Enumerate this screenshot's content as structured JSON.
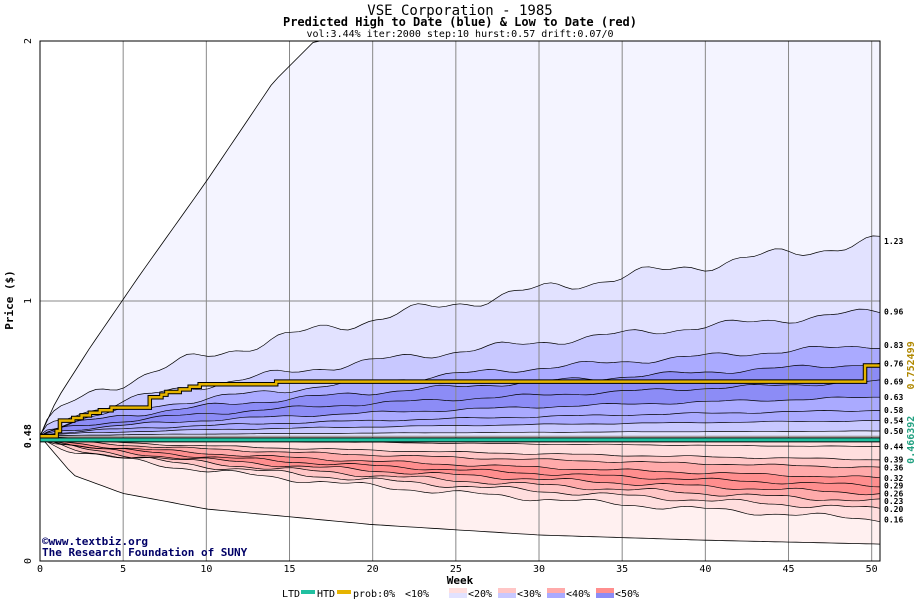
{
  "chart_data": {
    "type": "area",
    "title": "VSE Corporation - 1985",
    "subtitle": "Predicted High to Date (blue) &  Low to Date (red)",
    "params": "vol:3.44% iter:2000 step:10 hurst:0.57 drift:0.07/0",
    "xlabel": "Week",
    "ylabel": "Price ($)",
    "xlim": [
      0,
      50.5
    ],
    "ylim": [
      0,
      2
    ],
    "x_ticks": [
      0,
      5,
      10,
      15,
      20,
      25,
      30,
      35,
      40,
      45,
      50
    ],
    "y_ticks": [
      {
        "value": 0,
        "label": "0",
        "bold": false
      },
      {
        "value": 0.48,
        "label": "0.48",
        "bold": true
      },
      {
        "value": 1,
        "label": "1",
        "bold": false
      },
      {
        "value": 2,
        "label": "2",
        "bold": false
      }
    ],
    "start_price": 0.48,
    "upper_envelope": {
      "x": [
        0,
        1,
        3,
        6,
        10,
        14,
        16.5,
        18,
        25,
        35,
        45,
        50.5
      ],
      "y": [
        0.48,
        0.62,
        0.82,
        1.1,
        1.46,
        1.84,
        2.0,
        2.0,
        2.0,
        2.0,
        2.0,
        2.0
      ]
    },
    "lower_envelope": {
      "x": [
        0,
        2,
        5,
        10,
        20,
        30,
        40,
        50.5
      ],
      "y": [
        0.48,
        0.33,
        0.26,
        0.2,
        0.14,
        0.1,
        0.08,
        0.065
      ]
    },
    "high_quantiles": [
      {
        "end": 1.23,
        "label": "1.23"
      },
      {
        "end": 0.96,
        "label": "0.96"
      },
      {
        "end": 0.83,
        "label": "0.83"
      },
      {
        "end": 0.76,
        "label": "0.76"
      },
      {
        "end": 0.69,
        "label": "0.69"
      },
      {
        "end": 0.63,
        "label": "0.63"
      },
      {
        "end": 0.58,
        "label": "0.58"
      },
      {
        "end": 0.54,
        "label": "0.54"
      },
      {
        "end": 0.5,
        "label": "0.50"
      }
    ],
    "low_quantiles": [
      {
        "end": 0.44,
        "label": "0.44"
      },
      {
        "end": 0.39,
        "label": "0.39"
      },
      {
        "end": 0.36,
        "label": "0.36"
      },
      {
        "end": 0.32,
        "label": "0.32"
      },
      {
        "end": 0.29,
        "label": "0.29"
      },
      {
        "end": 0.26,
        "label": "0.26"
      },
      {
        "end": 0.23,
        "label": "0.23"
      },
      {
        "end": 0.2,
        "label": "0.20"
      },
      {
        "end": 0.16,
        "label": "0.16"
      }
    ],
    "htd_actual": {
      "color": "#e6b400",
      "x": [
        0,
        1,
        1.2,
        2,
        2.5,
        3,
        3.6,
        4.3,
        5,
        6.2,
        6.6,
        7.3,
        7.6,
        8.4,
        9,
        9.6,
        10.5,
        13.8,
        14.2,
        25,
        30,
        35,
        40,
        45,
        49.3,
        49.6,
        50.5
      ],
      "y": [
        0.48,
        0.5,
        0.54,
        0.55,
        0.56,
        0.57,
        0.58,
        0.59,
        0.59,
        0.59,
        0.63,
        0.64,
        0.65,
        0.66,
        0.67,
        0.68,
        0.68,
        0.68,
        0.69,
        0.69,
        0.69,
        0.69,
        0.69,
        0.69,
        0.69,
        0.752,
        0.752
      ]
    },
    "ltd_actual": {
      "color": "#20c0a0",
      "x": [
        0,
        50.5
      ],
      "y": [
        0.466,
        0.466
      ]
    },
    "right_values": [
      {
        "value": 0.752499,
        "label": "0.752499",
        "color": "#b08800"
      },
      {
        "value": 0.466392,
        "label": "0.466392",
        "color": "#20a080"
      }
    ],
    "prob_colors": {
      "high": [
        "#f4f4ff",
        "#e2e2ff",
        "#c8c8ff",
        "#aaaaff",
        "#8c8cf6"
      ],
      "low": [
        "#fff0f0",
        "#ffdede",
        "#ffc6c6",
        "#ffaaaa",
        "#ff8e8e"
      ]
    }
  },
  "credit": {
    "copyright": "©www.textbiz.org",
    "org": "The Research Foundation of SUNY"
  },
  "legend": {
    "ltd": "LTD",
    "htd": "HTD",
    "prob": "prob:0%",
    "items": [
      "<10%",
      "<20%",
      "<30%",
      "<40%",
      "<50%"
    ],
    "colors": {
      "ltd": "#20c0a0",
      "htd": "#e6b400"
    },
    "swatch_high": [
      "#f4f4ff",
      "#e2e2ff",
      "#c8c8ff",
      "#aaaaff",
      "#8c8cf6"
    ],
    "swatch_low": [
      "#fff0f0",
      "#ffdede",
      "#ffc6c6",
      "#ffaaaa",
      "#ff8e8e"
    ]
  }
}
